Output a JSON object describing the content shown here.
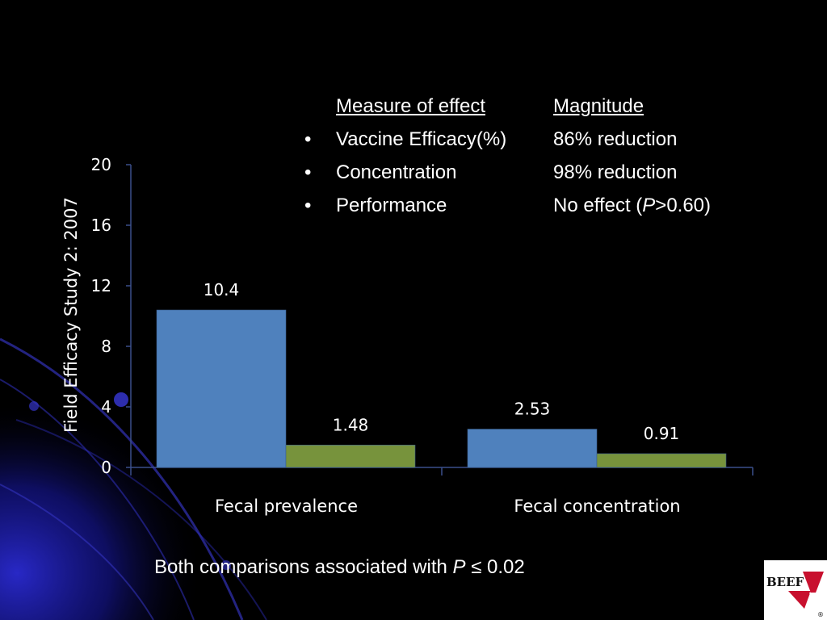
{
  "table": {
    "headers": [
      "Measure of effect",
      "Magnitude"
    ],
    "rows": [
      {
        "measure": "Vaccine Efficacy(%)",
        "magnitude": "86% reduction"
      },
      {
        "measure": "Concentration",
        "magnitude": "98% reduction"
      },
      {
        "measure": "Performance",
        "magnitude_prefix": "No effect (",
        "magnitude_italic": "P",
        "magnitude_suffix": ">0.60)"
      }
    ],
    "bullet": "•"
  },
  "footnote": {
    "prefix": "Both comparisons associated with ",
    "italic": "P",
    "suffix": " ≤ 0.02"
  },
  "logo": {
    "text": "BEEF",
    "mark": "®"
  },
  "colors": {
    "series1": "#4f81bd",
    "series2": "#77933c",
    "axis": "#3a4f8a",
    "background": "#000000",
    "accent": "#1a1aa8"
  },
  "chart_data": {
    "type": "bar",
    "ylabel": "Field Efficacy Study 2: 2007",
    "categories": [
      "Fecal prevalence",
      "Fecal concentration"
    ],
    "series": [
      {
        "values": [
          10.4,
          2.53
        ],
        "labels": [
          "10.4",
          "2.53"
        ]
      },
      {
        "values": [
          1.48,
          0.91
        ],
        "labels": [
          "1.48",
          "0.91"
        ]
      }
    ],
    "ylim": [
      0,
      20
    ],
    "yticks": [
      0,
      4,
      8,
      12,
      16,
      20
    ],
    "grid": false
  }
}
